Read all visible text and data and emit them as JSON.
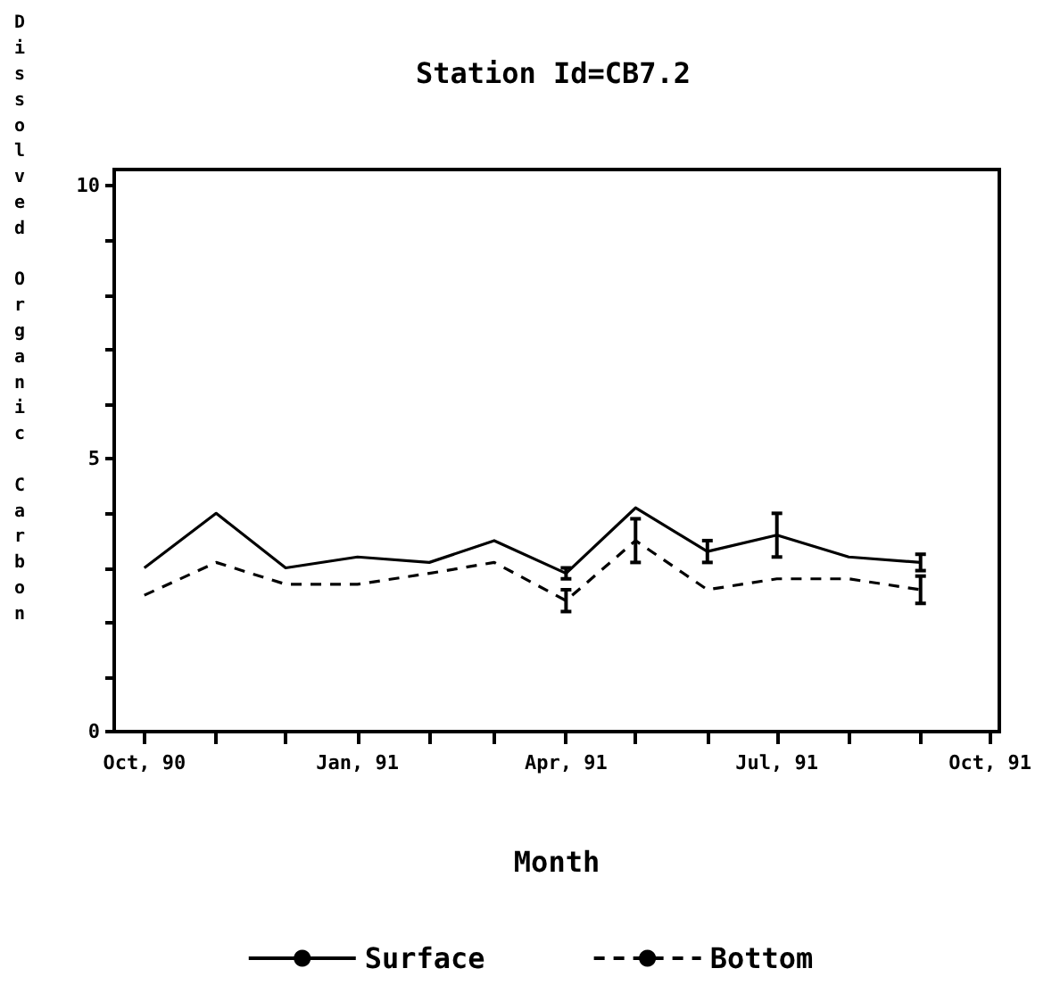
{
  "chart_data": {
    "type": "line",
    "title": "Station Id=CB7.2",
    "xlabel": "Month",
    "ylabel": "Dissolved Organic Carbon",
    "x": [
      "1990-10",
      "1990-11",
      "1990-12",
      "1991-01",
      "1991-02",
      "1991-03",
      "1991-04",
      "1991-05",
      "1991-06",
      "1991-07",
      "1991-08",
      "1991-09"
    ],
    "series": [
      {
        "name": "Surface",
        "color": "#000000",
        "line_style": "solid",
        "values": [
          3.0,
          4.0,
          3.0,
          3.2,
          3.1,
          3.5,
          2.9,
          4.1,
          3.3,
          3.6,
          3.2,
          3.1
        ],
        "errors": [
          null,
          null,
          null,
          null,
          null,
          null,
          0.1,
          null,
          0.2,
          0.4,
          null,
          0.15
        ]
      },
      {
        "name": "Bottom",
        "color": "#000000",
        "line_style": "dashed",
        "values": [
          2.5,
          3.1,
          2.7,
          2.7,
          2.9,
          3.1,
          2.4,
          3.5,
          2.6,
          2.8,
          2.8,
          2.6
        ],
        "errors": [
          null,
          null,
          null,
          null,
          null,
          null,
          0.2,
          0.4,
          null,
          null,
          null,
          0.25
        ]
      }
    ],
    "xlim": [
      "1990-09-18",
      "1991-10-05"
    ],
    "xticks": [
      {
        "value": "1990-10",
        "label": "Oct, 90"
      },
      {
        "value": "1990-11",
        "label": null
      },
      {
        "value": "1990-12",
        "label": null
      },
      {
        "value": "1991-01",
        "label": "Jan, 91"
      },
      {
        "value": "1991-02",
        "label": null
      },
      {
        "value": "1991-03",
        "label": null
      },
      {
        "value": "1991-04",
        "label": "Apr, 91"
      },
      {
        "value": "1991-05",
        "label": null
      },
      {
        "value": "1991-06",
        "label": null
      },
      {
        "value": "1991-07",
        "label": "Jul, 91"
      },
      {
        "value": "1991-08",
        "label": null
      },
      {
        "value": "1991-09",
        "label": null
      },
      {
        "value": "1991-10",
        "label": "Oct, 91"
      }
    ],
    "ylim": [
      0,
      10.3
    ],
    "yticks": [
      0,
      {
        "value": 1,
        "label": null
      },
      {
        "value": 2,
        "label": null
      },
      {
        "value": 3,
        "label": null
      },
      {
        "value": 4,
        "label": null
      },
      5,
      {
        "value": 6,
        "label": null
      },
      {
        "value": 7,
        "label": null
      },
      {
        "value": 8,
        "label": null
      },
      {
        "value": 9,
        "label": null
      },
      10
    ],
    "grid": false,
    "legend": "bottom",
    "marker": "none"
  }
}
